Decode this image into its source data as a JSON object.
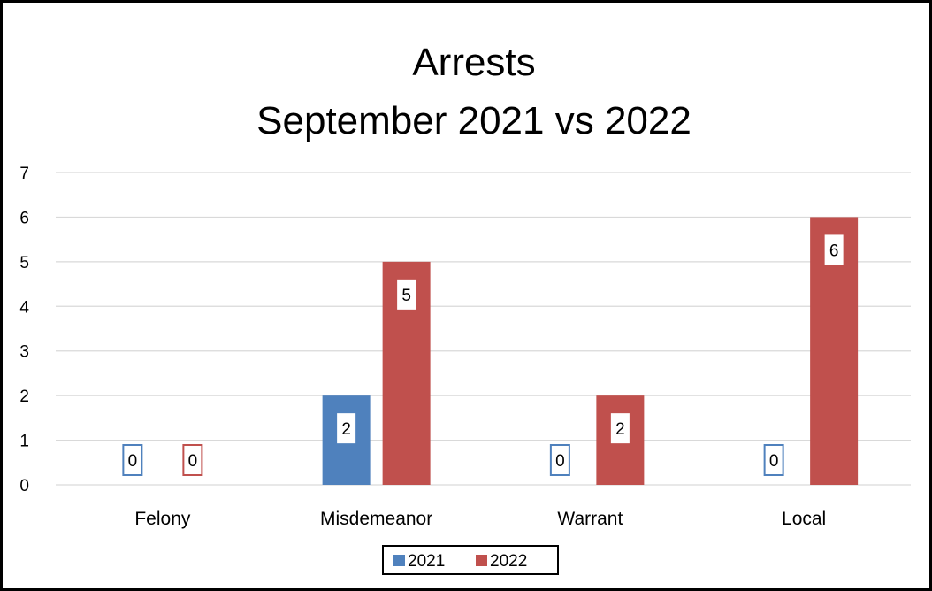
{
  "chart_data": {
    "type": "bar",
    "title": [
      "Arrests",
      "September  2021 vs 2022"
    ],
    "categories": [
      "Felony",
      "Misdemeanor",
      "Warrant",
      "Local"
    ],
    "series": [
      {
        "name": "2021",
        "values": [
          0,
          2,
          0,
          0
        ],
        "color": "#4f81bd"
      },
      {
        "name": "2022",
        "values": [
          0,
          5,
          2,
          6
        ],
        "color": "#c0504d"
      }
    ],
    "ylim": [
      0,
      7
    ],
    "yticks": [
      0,
      1,
      2,
      3,
      4,
      5,
      6,
      7
    ],
    "grid": true,
    "legend": "bottom-center"
  }
}
